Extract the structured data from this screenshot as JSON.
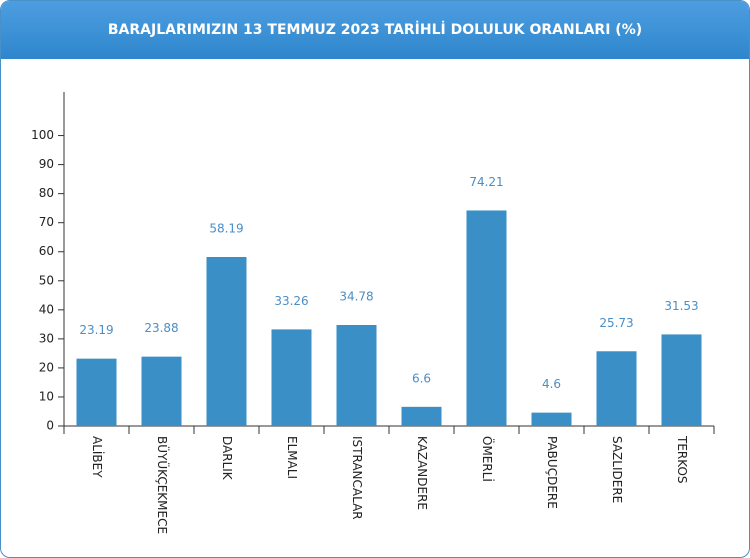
{
  "chart_data": {
    "type": "bar",
    "title": "BARAJLARIMIZIN 13 TEMMUZ 2023 TARİHLİ DOLULUK ORANLARI (%)",
    "categories": [
      "ALİBEY",
      "BÜYÜKÇEKMECE",
      "DARLIK",
      "ELMALI",
      "ISTRANCALAR",
      "KAZANDERE",
      "ÖMERLİ",
      "PABUÇDERE",
      "SAZLIDERE",
      "TERKOS"
    ],
    "values": [
      23.19,
      23.88,
      58.19,
      33.26,
      34.78,
      6.6,
      74.21,
      4.6,
      25.73,
      31.53
    ],
    "color": "#3a8fc6",
    "ylim": [
      0,
      115
    ],
    "yticks": [
      0,
      10,
      20,
      30,
      40,
      50,
      60,
      70,
      80,
      90,
      100
    ]
  }
}
